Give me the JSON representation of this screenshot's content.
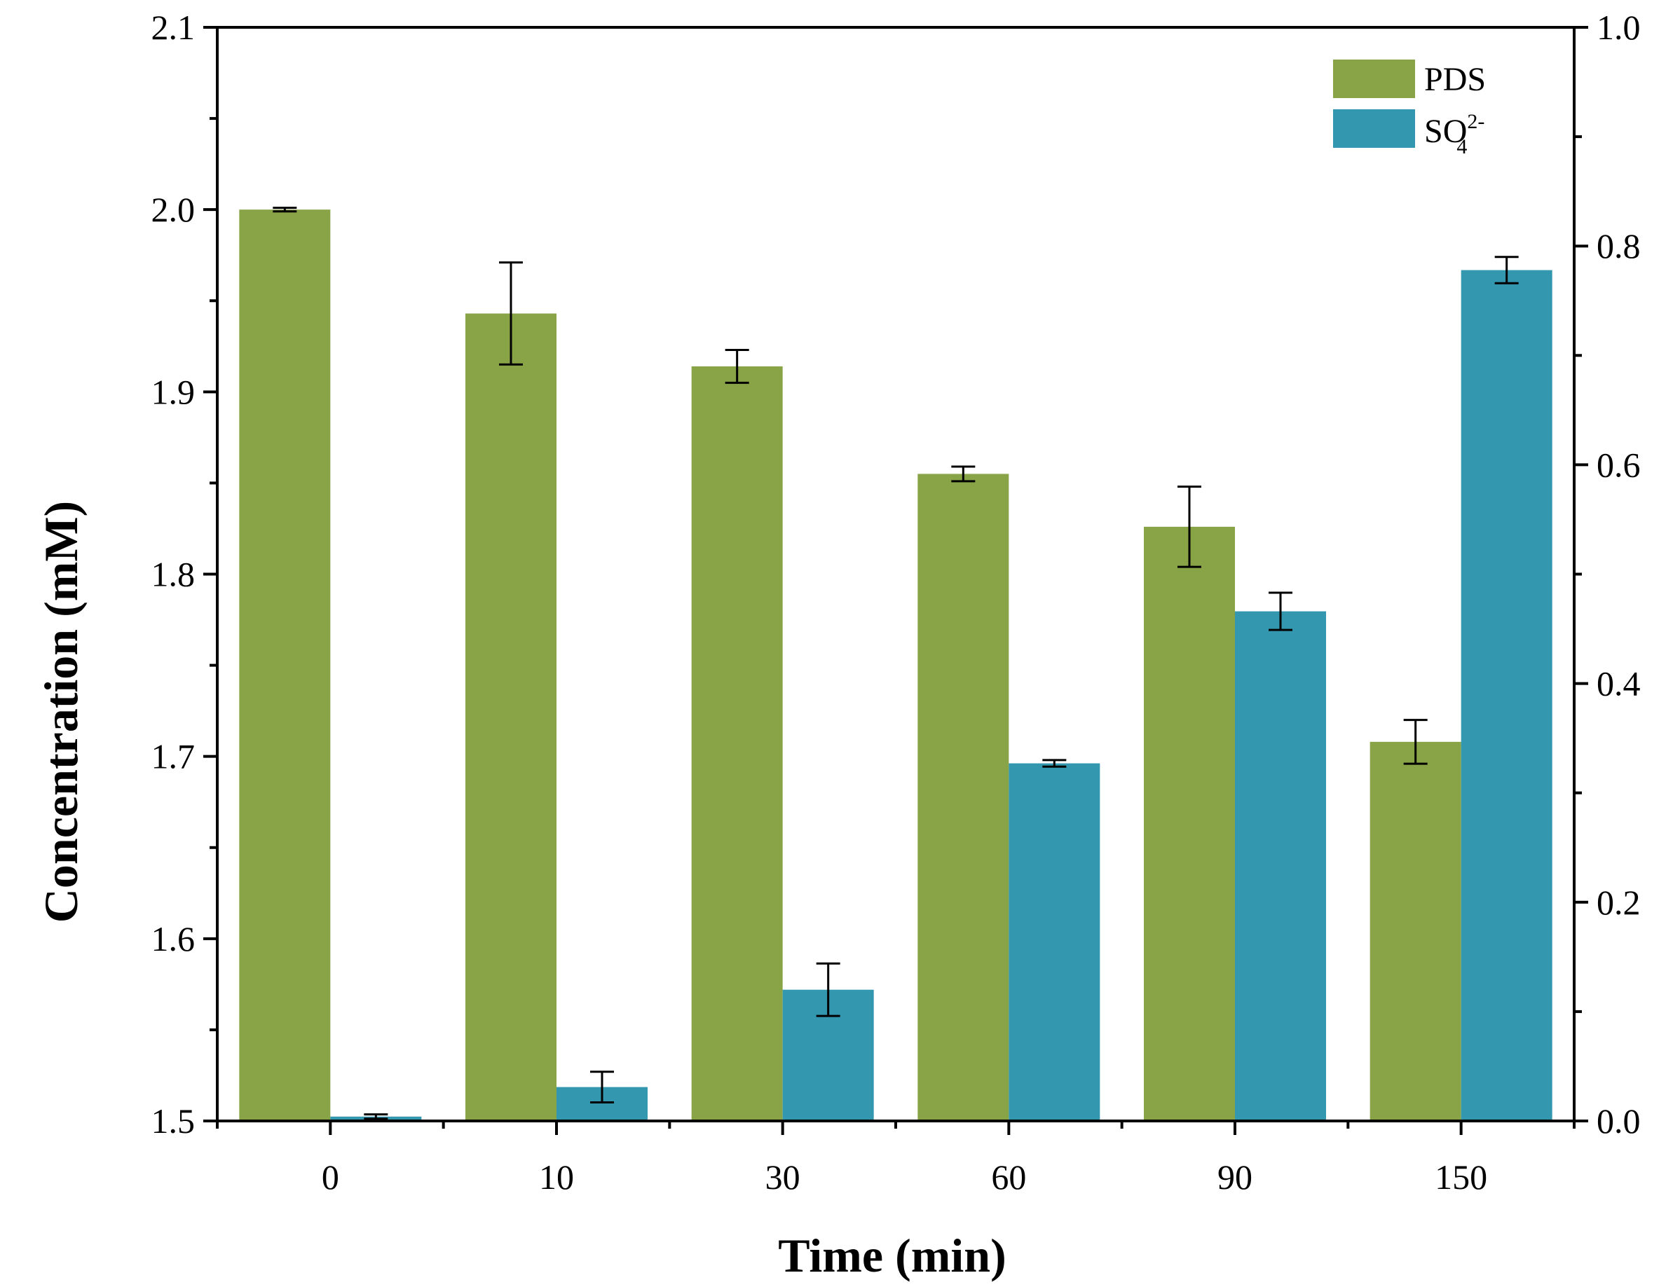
{
  "chart_data": {
    "type": "bar",
    "title": "",
    "xlabel": "Time (min)",
    "ylabel": "Concentration (mM)",
    "ylabel_right": "",
    "categories": [
      "0",
      "10",
      "30",
      "60",
      "90",
      "150"
    ],
    "ylim": [
      1.5,
      2.1
    ],
    "ylim_right": [
      0.0,
      1.0
    ],
    "yticks": [
      "1.5",
      "1.6",
      "1.7",
      "1.8",
      "1.9",
      "2.0",
      "2.1"
    ],
    "yticks_right": [
      "0.0",
      "0.2",
      "0.4",
      "0.6",
      "0.8",
      "1.0"
    ],
    "legend_position": "top-right",
    "grid": false,
    "series": [
      {
        "name": "PDS",
        "axis": "left",
        "color": "#88a447",
        "values": [
          2.0,
          1.943,
          1.914,
          1.855,
          1.826,
          1.708
        ],
        "errors": [
          0.001,
          0.028,
          0.009,
          0.004,
          0.022,
          0.012
        ]
      },
      {
        "name": "SO",
        "subscript": "4",
        "superscript": "2-",
        "axis": "right",
        "color": "#3497b0",
        "values": [
          0.004,
          0.031,
          0.12,
          0.327,
          0.466,
          0.778
        ],
        "errors": [
          0.002,
          0.014,
          0.024,
          0.003,
          0.017,
          0.012
        ]
      }
    ]
  }
}
